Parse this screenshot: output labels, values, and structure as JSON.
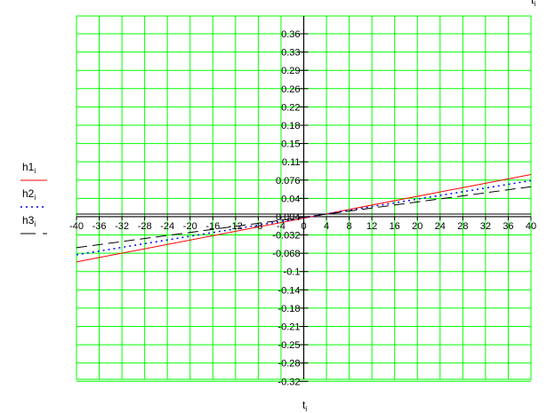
{
  "chart_data": {
    "type": "line",
    "xlabel": "t",
    "xlabel_sub": "i",
    "top_label": "t",
    "top_label_sub": "i",
    "xlim": [
      -40,
      40
    ],
    "ylim": [
      -0.32,
      0.395
    ],
    "grid": true,
    "grid_color": "#00ff00",
    "x_ticks": [
      "-40",
      "-36",
      "-32",
      "-28",
      "-24",
      "-20",
      "-16",
      "-12",
      "-8",
      "-4",
      "0",
      "4",
      "8",
      "12",
      "16",
      "20",
      "24",
      "28",
      "32",
      "36",
      "40"
    ],
    "y_ticks": [
      "0.36",
      "0.33",
      "0.29",
      "0.26",
      "0.22",
      "0.18",
      "0.15",
      "0.11",
      "0.076",
      "0.04",
      "0.004",
      "-0.032",
      "-0.068",
      "-0.1",
      "-0.14",
      "-0.18",
      "-0.21",
      "-0.25",
      "-0.28",
      "-0.32"
    ],
    "legend_placement": "left",
    "series": [
      {
        "name": "h1",
        "sub": "i",
        "style": "solid",
        "color": "#ff0000",
        "x": [
          -40,
          40
        ],
        "y": [
          -0.089,
          0.083
        ]
      },
      {
        "name": "h2",
        "sub": "i",
        "style": "dotted",
        "color": "#0000ff",
        "x": [
          -40,
          40
        ],
        "y": [
          -0.075,
          0.071
        ]
      },
      {
        "name": "h3",
        "sub": "i",
        "style": "dashed",
        "color": "#000000",
        "x": [
          -40,
          40
        ],
        "y": [
          -0.061,
          0.059
        ]
      }
    ]
  }
}
